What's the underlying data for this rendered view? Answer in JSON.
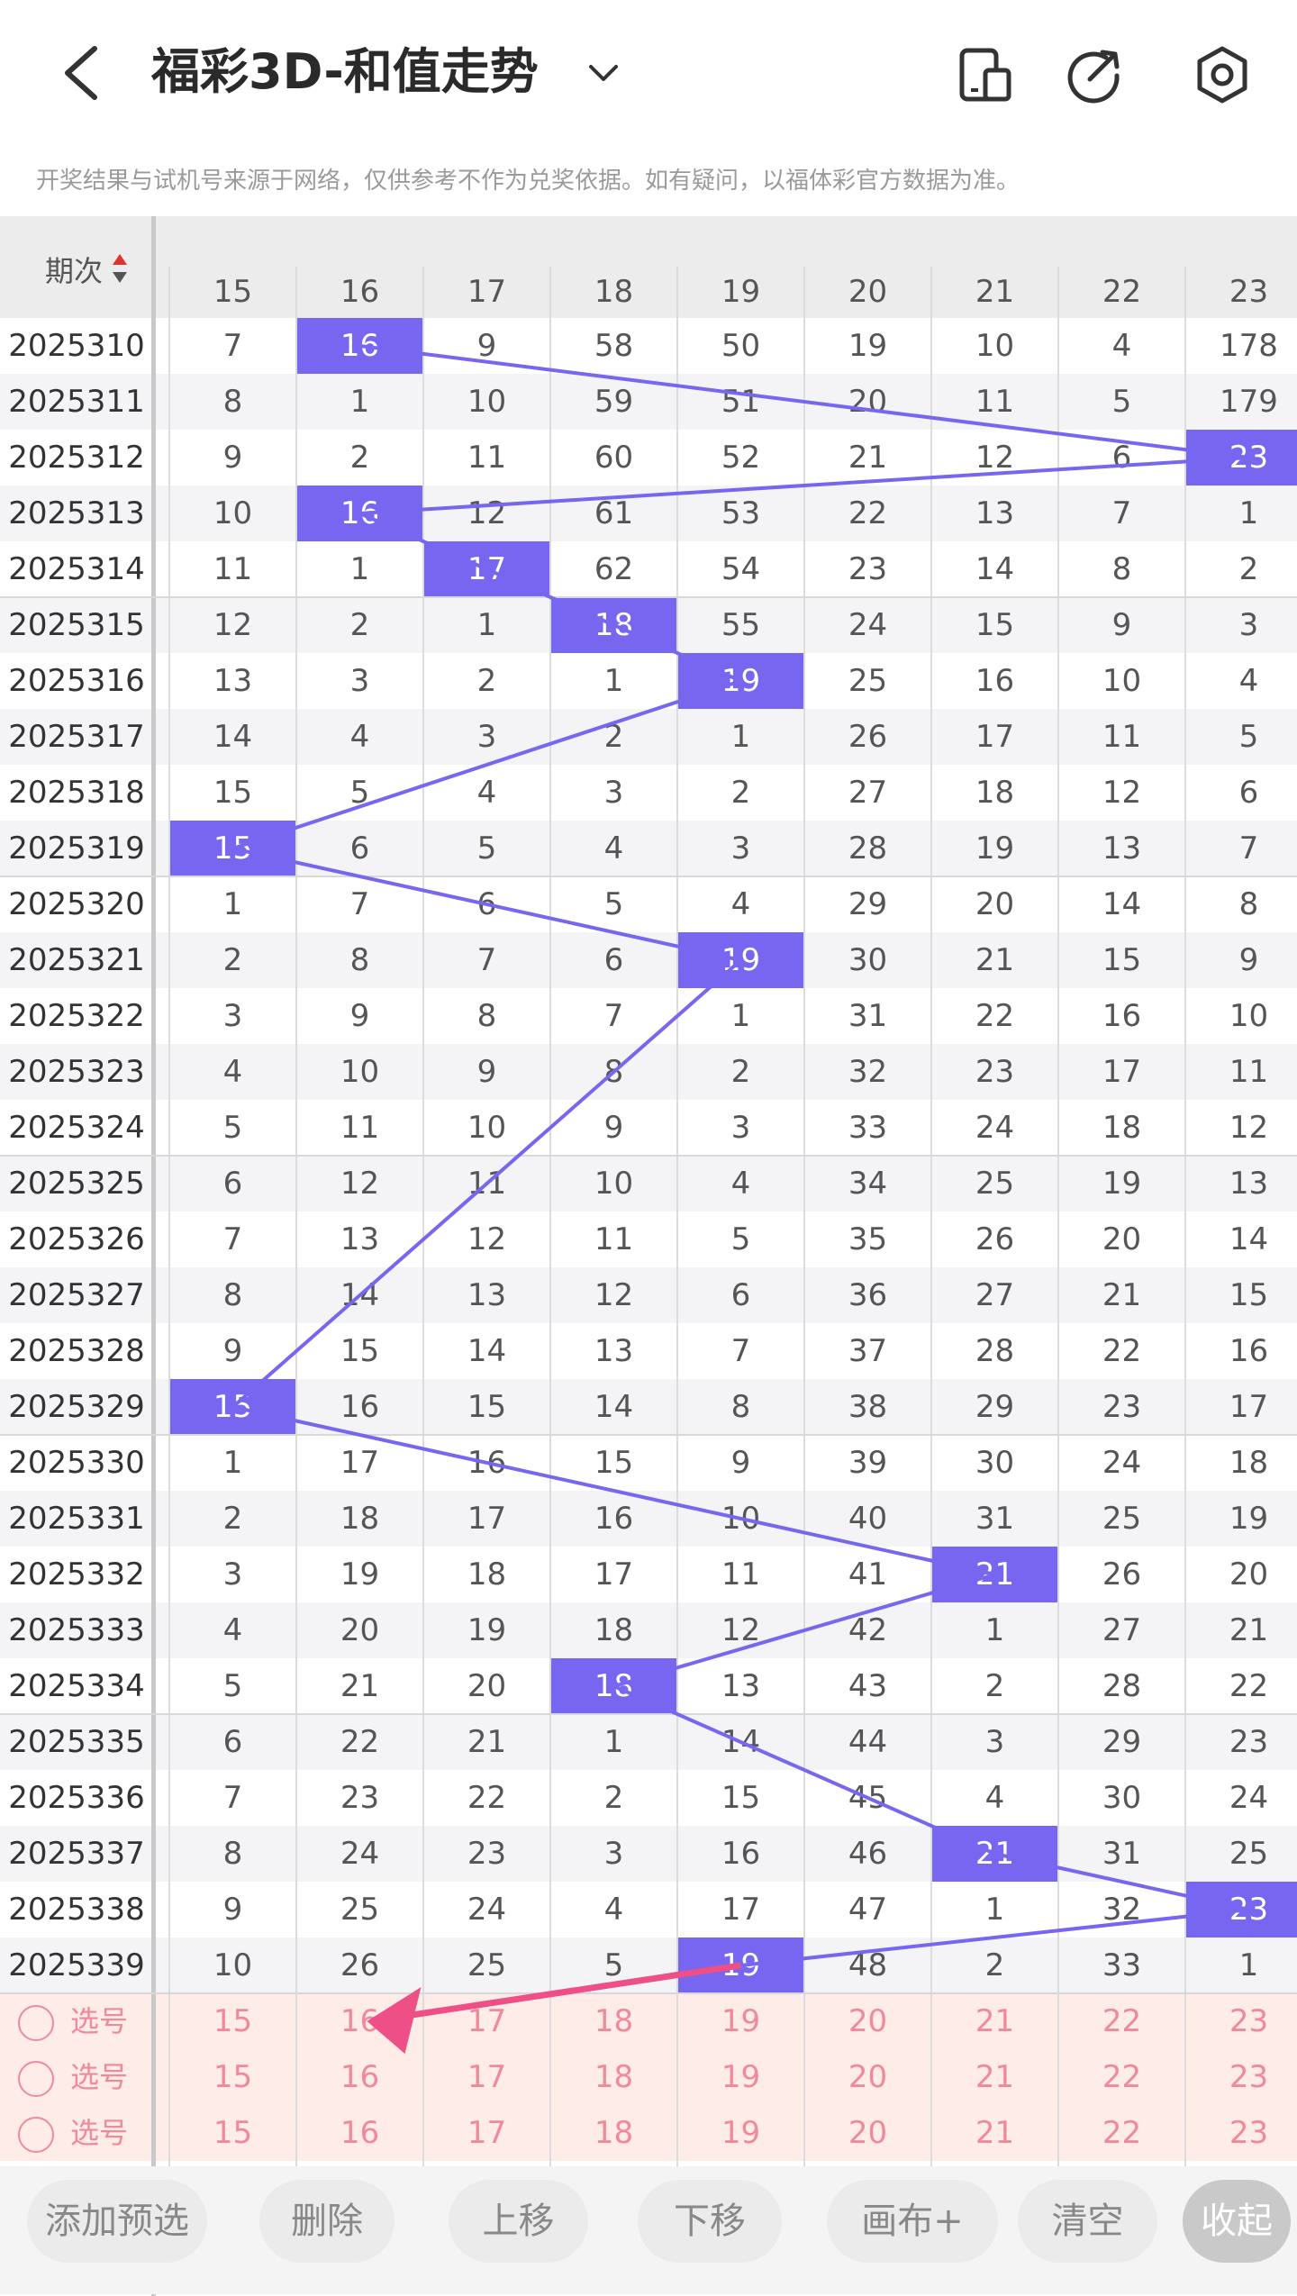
{
  "header": {
    "title": "福彩3D-和值走势",
    "icons": [
      "back-icon",
      "chevron-down-icon",
      "device-icon",
      "share-icon",
      "settings-icon"
    ]
  },
  "notice": "开奖结果与试机号来源于网络，仅供参考不作为兑奖依据。如有疑问，以福体彩官方数据为准。",
  "table": {
    "period_header": "期次",
    "columns": [
      "15",
      "16",
      "17",
      "18",
      "19",
      "20",
      "21",
      "22",
      "23"
    ],
    "rows": [
      {
        "period": "2025310",
        "values": [
          "7",
          "16",
          "9",
          "58",
          "50",
          "19",
          "10",
          "4",
          "178"
        ],
        "hit": 1
      },
      {
        "period": "2025311",
        "values": [
          "8",
          "1",
          "10",
          "59",
          "51",
          "20",
          "11",
          "5",
          "179"
        ],
        "hit": -1
      },
      {
        "period": "2025312",
        "values": [
          "9",
          "2",
          "11",
          "60",
          "52",
          "21",
          "12",
          "6",
          "23"
        ],
        "hit": 8
      },
      {
        "period": "2025313",
        "values": [
          "10",
          "16",
          "12",
          "61",
          "53",
          "22",
          "13",
          "7",
          "1"
        ],
        "hit": 1
      },
      {
        "period": "2025314",
        "values": [
          "11",
          "1",
          "17",
          "62",
          "54",
          "23",
          "14",
          "8",
          "2"
        ],
        "hit": 2
      },
      {
        "period": "2025315",
        "values": [
          "12",
          "2",
          "1",
          "18",
          "55",
          "24",
          "15",
          "9",
          "3"
        ],
        "hit": 3
      },
      {
        "period": "2025316",
        "values": [
          "13",
          "3",
          "2",
          "1",
          "19",
          "25",
          "16",
          "10",
          "4"
        ],
        "hit": 4
      },
      {
        "period": "2025317",
        "values": [
          "14",
          "4",
          "3",
          "2",
          "1",
          "26",
          "17",
          "11",
          "5"
        ],
        "hit": -1
      },
      {
        "period": "2025318",
        "values": [
          "15",
          "5",
          "4",
          "3",
          "2",
          "27",
          "18",
          "12",
          "6"
        ],
        "hit": -1
      },
      {
        "period": "2025319",
        "values": [
          "15",
          "6",
          "5",
          "4",
          "3",
          "28",
          "19",
          "13",
          "7"
        ],
        "hit": 0
      },
      {
        "period": "2025320",
        "values": [
          "1",
          "7",
          "6",
          "5",
          "4",
          "29",
          "20",
          "14",
          "8"
        ],
        "hit": -1
      },
      {
        "period": "2025321",
        "values": [
          "2",
          "8",
          "7",
          "6",
          "19",
          "30",
          "21",
          "15",
          "9"
        ],
        "hit": 4
      },
      {
        "period": "2025322",
        "values": [
          "3",
          "9",
          "8",
          "7",
          "1",
          "31",
          "22",
          "16",
          "10"
        ],
        "hit": -1
      },
      {
        "period": "2025323",
        "values": [
          "4",
          "10",
          "9",
          "8",
          "2",
          "32",
          "23",
          "17",
          "11"
        ],
        "hit": -1
      },
      {
        "period": "2025324",
        "values": [
          "5",
          "11",
          "10",
          "9",
          "3",
          "33",
          "24",
          "18",
          "12"
        ],
        "hit": -1
      },
      {
        "period": "2025325",
        "values": [
          "6",
          "12",
          "11",
          "10",
          "4",
          "34",
          "25",
          "19",
          "13"
        ],
        "hit": -1
      },
      {
        "period": "2025326",
        "values": [
          "7",
          "13",
          "12",
          "11",
          "5",
          "35",
          "26",
          "20",
          "14"
        ],
        "hit": -1
      },
      {
        "period": "2025327",
        "values": [
          "8",
          "14",
          "13",
          "12",
          "6",
          "36",
          "27",
          "21",
          "15"
        ],
        "hit": -1
      },
      {
        "period": "2025328",
        "values": [
          "9",
          "15",
          "14",
          "13",
          "7",
          "37",
          "28",
          "22",
          "16"
        ],
        "hit": -1
      },
      {
        "period": "2025329",
        "values": [
          "15",
          "16",
          "15",
          "14",
          "8",
          "38",
          "29",
          "23",
          "17"
        ],
        "hit": 0
      },
      {
        "period": "2025330",
        "values": [
          "1",
          "17",
          "16",
          "15",
          "9",
          "39",
          "30",
          "24",
          "18"
        ],
        "hit": -1
      },
      {
        "period": "2025331",
        "values": [
          "2",
          "18",
          "17",
          "16",
          "10",
          "40",
          "31",
          "25",
          "19"
        ],
        "hit": -1
      },
      {
        "period": "2025332",
        "values": [
          "3",
          "19",
          "18",
          "17",
          "11",
          "41",
          "21",
          "26",
          "20"
        ],
        "hit": 6
      },
      {
        "period": "2025333",
        "values": [
          "4",
          "20",
          "19",
          "18",
          "12",
          "42",
          "1",
          "27",
          "21"
        ],
        "hit": -1
      },
      {
        "period": "2025334",
        "values": [
          "5",
          "21",
          "20",
          "18",
          "13",
          "43",
          "2",
          "28",
          "22"
        ],
        "hit": 3
      },
      {
        "period": "2025335",
        "values": [
          "6",
          "22",
          "21",
          "1",
          "14",
          "44",
          "3",
          "29",
          "23"
        ],
        "hit": -1
      },
      {
        "period": "2025336",
        "values": [
          "7",
          "23",
          "22",
          "2",
          "15",
          "45",
          "4",
          "30",
          "24"
        ],
        "hit": -1
      },
      {
        "period": "2025337",
        "values": [
          "8",
          "24",
          "23",
          "3",
          "16",
          "46",
          "21",
          "31",
          "25"
        ],
        "hit": 6
      },
      {
        "period": "2025338",
        "values": [
          "9",
          "25",
          "24",
          "4",
          "17",
          "47",
          "1",
          "32",
          "23"
        ],
        "hit": 8
      },
      {
        "period": "2025339",
        "values": [
          "10",
          "26",
          "25",
          "5",
          "19",
          "48",
          "2",
          "33",
          "1"
        ],
        "hit": 4
      }
    ],
    "pick_rows": [
      {
        "label": "选号",
        "values": [
          "15",
          "16",
          "17",
          "18",
          "19",
          "20",
          "21",
          "22",
          "23"
        ]
      },
      {
        "label": "选号",
        "values": [
          "15",
          "16",
          "17",
          "18",
          "19",
          "20",
          "21",
          "22",
          "23"
        ]
      },
      {
        "label": "选号",
        "values": [
          "15",
          "16",
          "17",
          "18",
          "19",
          "20",
          "21",
          "22",
          "23"
        ]
      }
    ]
  },
  "toolbar": {
    "buttons": [
      "添加预选",
      "删除",
      "上移",
      "下移",
      "画布+",
      "清空",
      "收起"
    ]
  },
  "colors": {
    "hit": "#7766f0",
    "pick": "#f08a9a",
    "arrow": "#ee4f86"
  }
}
